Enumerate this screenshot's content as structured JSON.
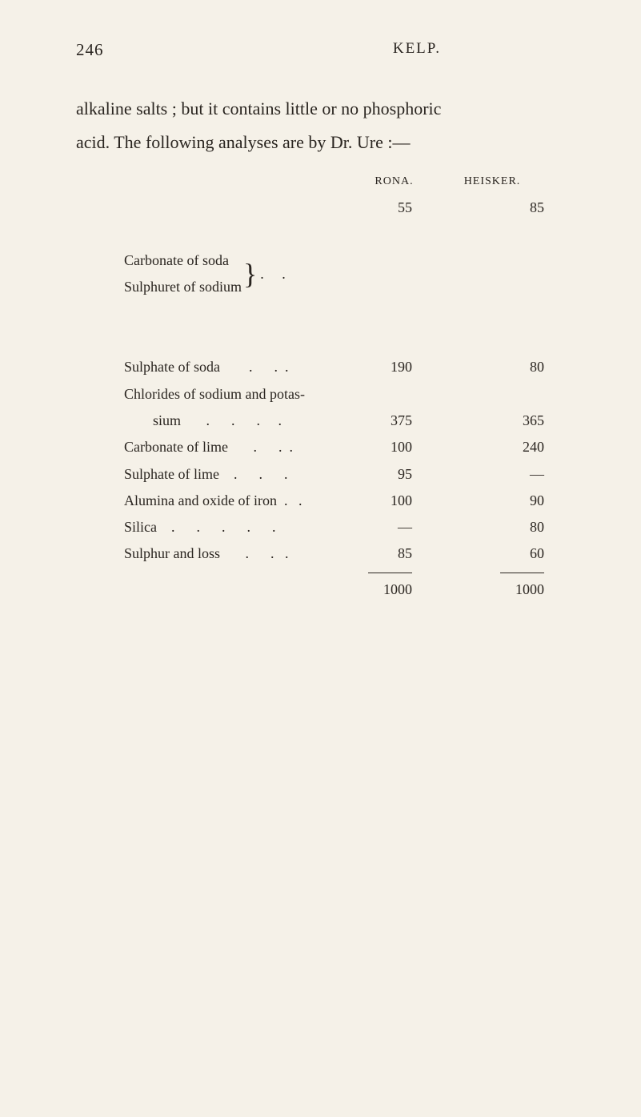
{
  "header": {
    "page_number": "246",
    "running_title": "KELP."
  },
  "body": {
    "line1": "alkaline salts ; but it contains little or no phosphoric",
    "line2": "acid.   The following analyses are by Dr. Ure :—"
  },
  "table": {
    "columns": {
      "col1": "RONA.",
      "col2": "HEISKER."
    },
    "rows": [
      {
        "type": "braced",
        "label1": "Carbonate of soda",
        "label2": "Sulphuret of sodium",
        "dots": ".     .",
        "col1": "55",
        "col2": "85"
      },
      {
        "label": "Sulphate of soda        .      .  .",
        "col1": "190",
        "col2": "80"
      },
      {
        "label": "Chlorides of sodium and potas-",
        "col1": "",
        "col2": ""
      },
      {
        "label": "        sium       .      .      .     .",
        "col1": "375",
        "col2": "365"
      },
      {
        "label": "Carbonate of lime       .      .  .",
        "col1": "100",
        "col2": "240"
      },
      {
        "label": "Sulphate of lime    .      .      .",
        "col1": "95",
        "col2": "—"
      },
      {
        "label": "Alumina and oxide of iron  .   .",
        "col1": "100",
        "col2": "90"
      },
      {
        "label": "Silica    .      .      .      .      .",
        "col1": "—",
        "col2": "80"
      },
      {
        "label": "Sulphur and loss       .      .   .",
        "col1": "85",
        "col2": "60"
      }
    ],
    "totals": {
      "col1": "1000",
      "col2": "1000"
    }
  },
  "colors": {
    "background": "#f5f1e8",
    "text": "#2a2520"
  }
}
